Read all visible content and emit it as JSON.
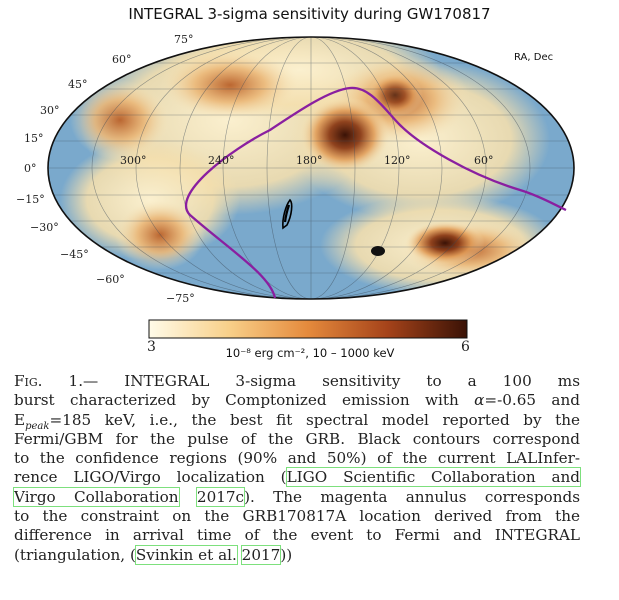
{
  "figure": {
    "title": "INTEGRAL 3-sigma sensitivity during GW170817",
    "projection_label": "RA, Dec",
    "ra_labels": [
      "300°",
      "240°",
      "180°",
      "120°",
      "60°"
    ],
    "dec_labels": [
      "75°",
      "60°",
      "45°",
      "30°",
      "15°",
      "0°",
      "−15°",
      "−30°",
      "−45°",
      "−60°",
      "−75°"
    ],
    "colorbar": {
      "min": "3",
      "max": "6",
      "label": "10⁻⁸ erg cm⁻², 10 – 1000 keV",
      "colors": [
        "#fffbe8",
        "#f8d08a",
        "#e58a3c",
        "#a5431a",
        "#3a1206"
      ]
    },
    "colors": {
      "background": "#7aa9cc",
      "annulus": "#8a1fa0",
      "contour": "#000000"
    }
  },
  "caption": {
    "label": "Fig. 1.—",
    "line1_rest": " INTEGRAL 3-sigma sensitivity to a 100 ms",
    "line2_pre": "burst characterized by Comptonized emission with ",
    "alpha": "α",
    "line2_post": "=-0.65 and",
    "line3_e": "E",
    "line3_sub": "peak",
    "line3_rest": "=185 keV, i.e., the best fit spectral model reported by the",
    "line4": "Fermi/GBM for the pulse of the GRB. Black contours correspond",
    "line5": "to the confidence regions (90% and 50%) of the current LALInfer-",
    "line6_pre": "rence LIGO/Virgo localization (",
    "cite1a": "LIGO Scientific Collaboration and",
    "cite1b": "Virgo Collaboration",
    "cite1_year": "2017c",
    "line7_post": "). The magenta annulus corresponds",
    "line8": "to the constraint on the GRB170817A location derived from the",
    "line9": "difference in arrival time of the event to Fermi and INTEGRAL",
    "line10_pre": "(triangulation, (",
    "cite2": "Svinkin et al.",
    "cite2_year": "2017",
    "line10_post": "))"
  }
}
